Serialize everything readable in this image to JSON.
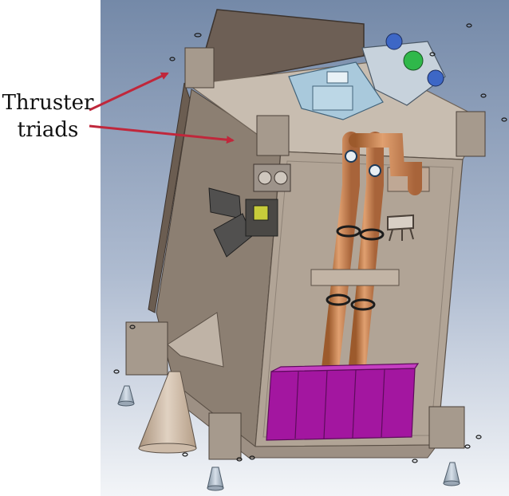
{
  "callout": {
    "line1": "Thruster",
    "line2": "triads",
    "arrow_color": "#c0273b"
  },
  "colors": {
    "background_top": "#7489a8",
    "background_bottom": "#f3f5f8",
    "body_face": "#b1a496",
    "body_side": "#8c7f72",
    "top_deck": "#c8bdb0",
    "solar_panel": "#6d5f55",
    "propellant_lines": "#c8834f",
    "battery_pack": "#a316a0",
    "tank_blue": "#a9c9dc",
    "star_tracker_green": "#2fb84a"
  },
  "components": {
    "body": "body-panel-icon",
    "battery": "battery-pack-icon",
    "piping": "propellant-line-icon",
    "legs": "landing-leg-icon",
    "nozzle": "engine-cone-icon",
    "thrusters": "thruster-triad-icon"
  }
}
